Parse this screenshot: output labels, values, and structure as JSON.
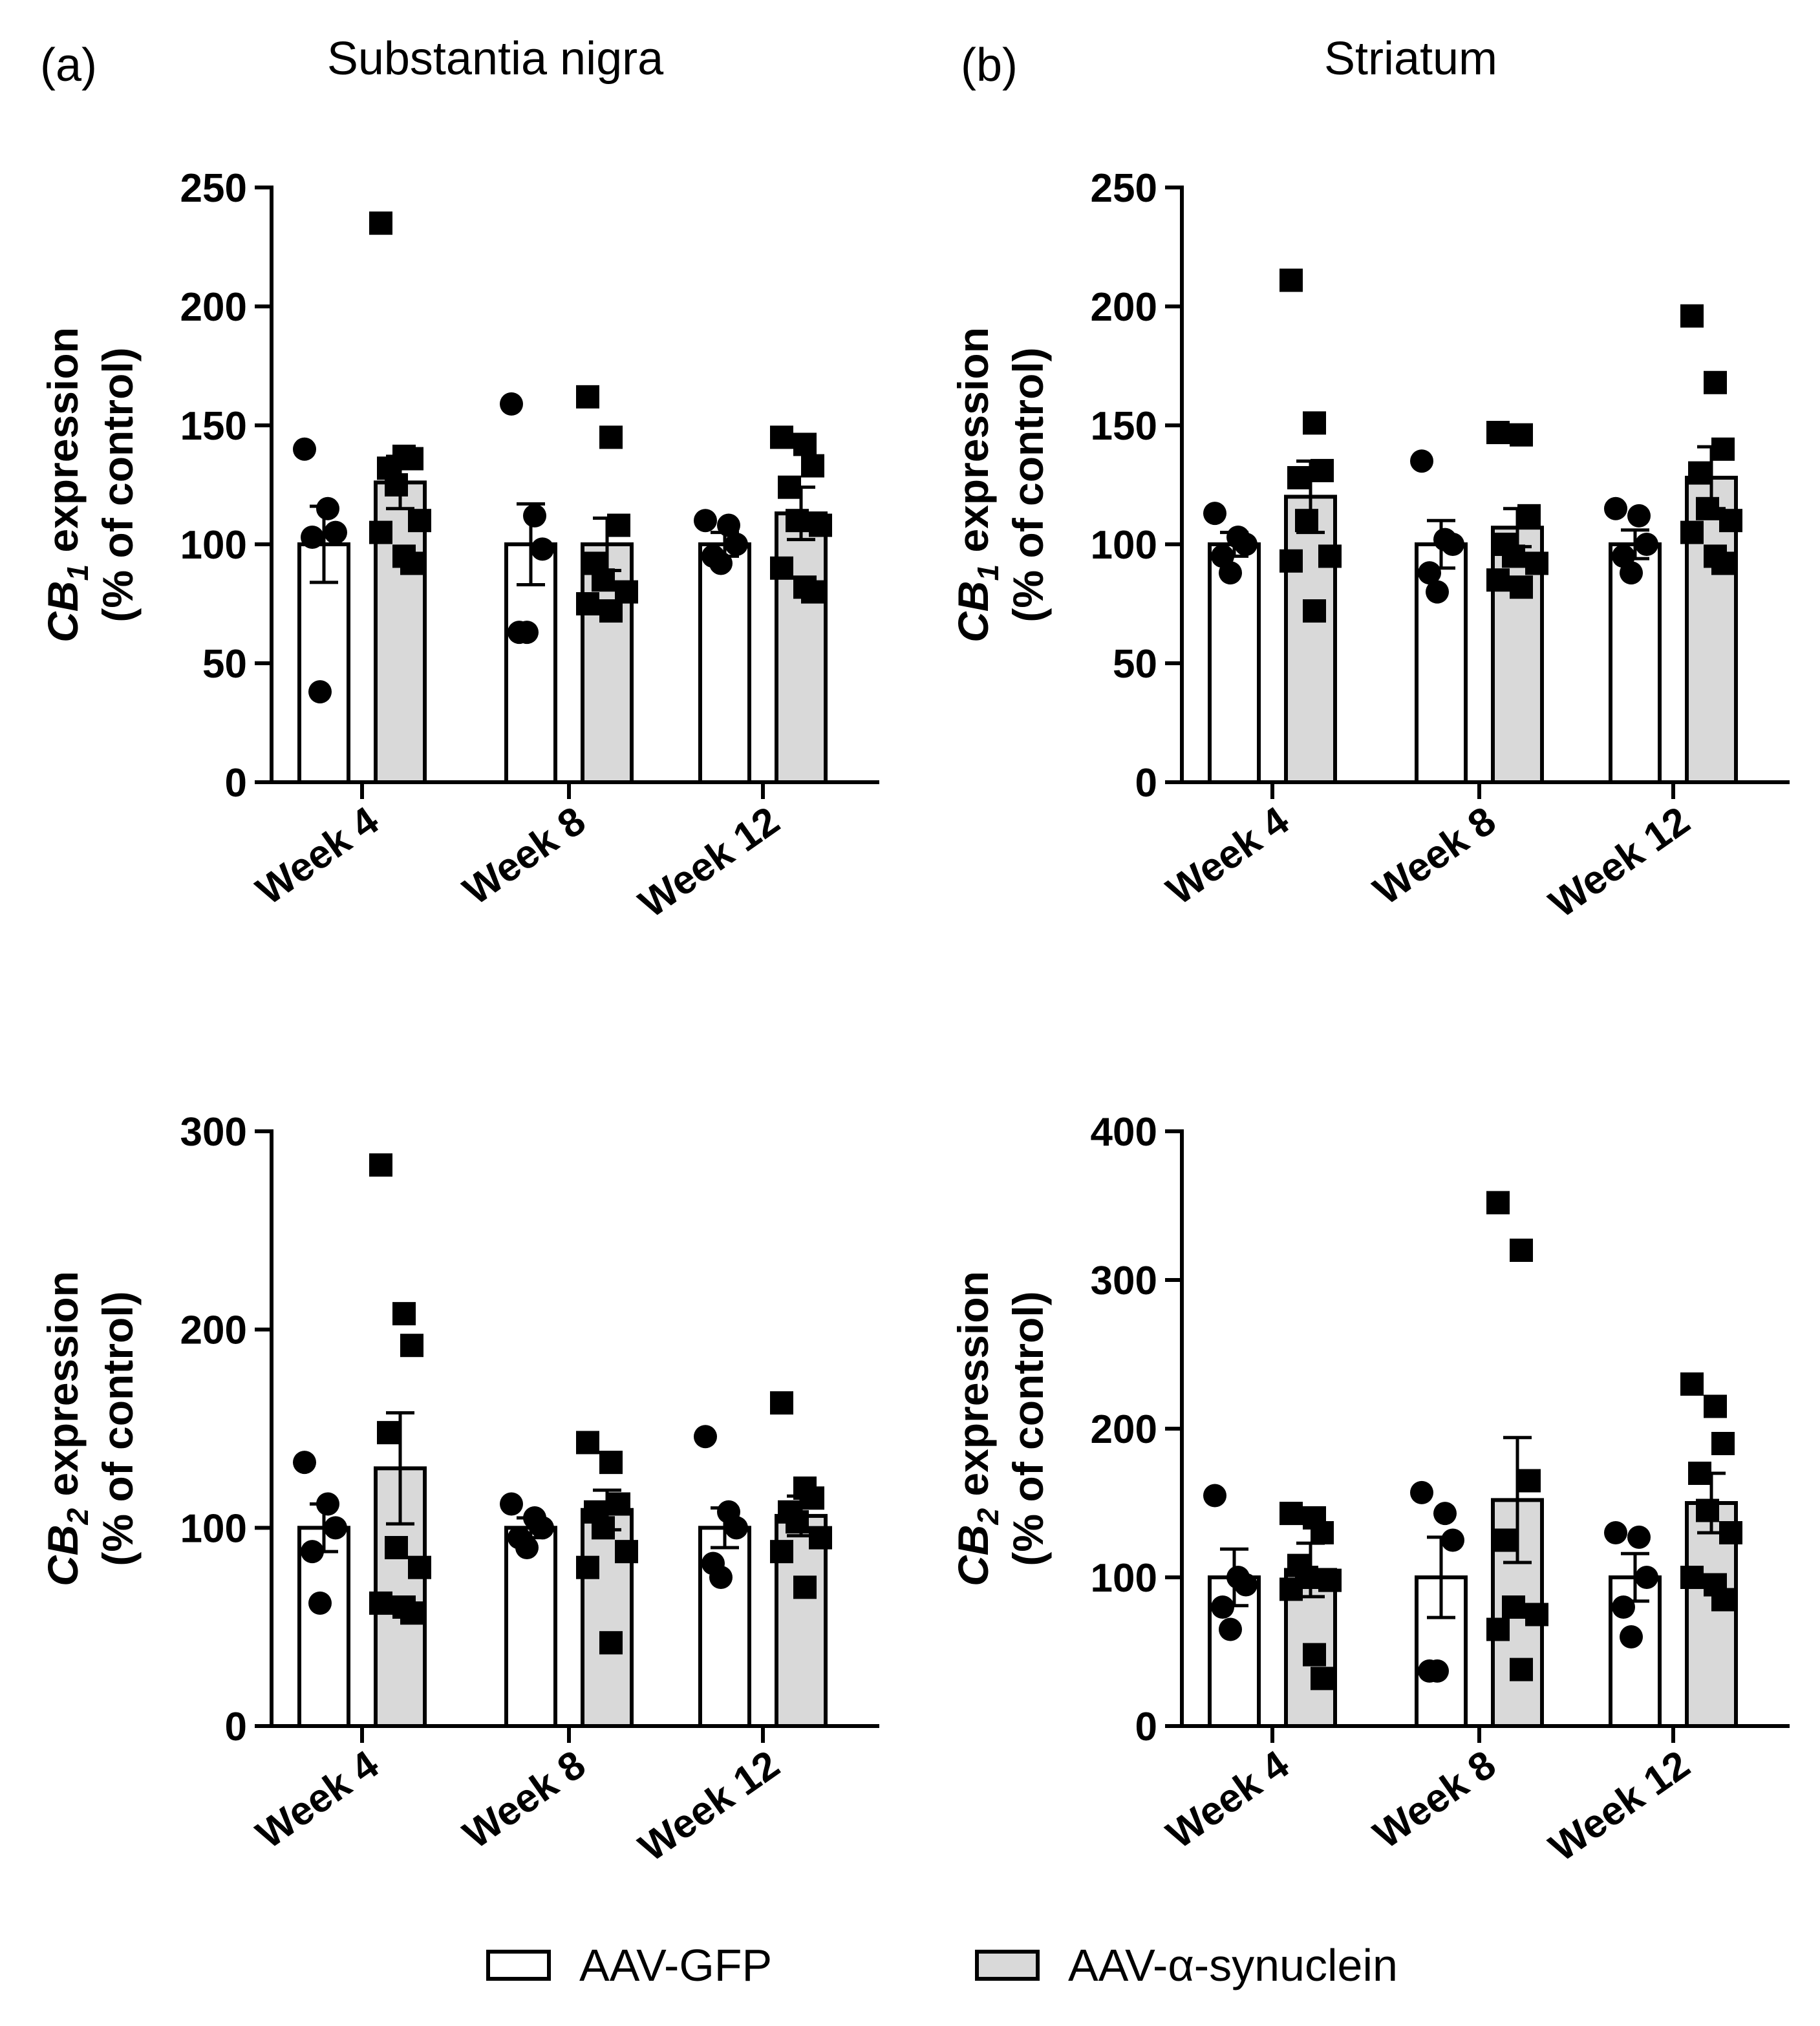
{
  "panels": {
    "a": {
      "letter": "(a)",
      "title": "Substantia nigra"
    },
    "b": {
      "letter": "(b)",
      "title": "Striatum"
    }
  },
  "legend": [
    {
      "label": "AAV-GFP",
      "color": "#ffffff"
    },
    {
      "label": "AAV-α-synuclein",
      "color": "#d9d9d9"
    }
  ],
  "chart_data": [
    {
      "id": "a-cb1",
      "type": "bar",
      "panel": "a",
      "ylabel_main": "CB",
      "ylabel_sub": "1",
      "ylabel_rest": " expression",
      "ylabel2": "(% of control)",
      "ylim": [
        0,
        250
      ],
      "yticks": [
        0,
        50,
        100,
        150,
        200,
        250
      ],
      "categories": [
        "Week 4",
        "Week 8",
        "Week 12"
      ],
      "series": [
        {
          "name": "AAV-GFP",
          "color": "#ffffff",
          "marker": "circle",
          "values": [
            100,
            100,
            100
          ],
          "sem": [
            16,
            17,
            5
          ],
          "points": [
            [
              140,
              115,
              105,
              103,
              38
            ],
            [
              159,
              112,
              98,
              63,
              63
            ],
            [
              110,
              108,
              100,
              95,
              92
            ]
          ]
        },
        {
          "name": "AAV-α-synuclein",
          "color": "#d9d9d9",
          "marker": "square",
          "values": [
            126,
            100,
            113
          ],
          "sem": [
            11,
            11,
            11
          ],
          "points": [
            [
              235,
              137,
              136,
              132,
              125,
              110,
              105,
              95,
              92
            ],
            [
              162,
              145,
              108,
              92,
              85,
              80,
              75,
              72
            ],
            [
              145,
              142,
              133,
              124,
              110,
              108,
              90,
              82,
              80
            ]
          ]
        }
      ]
    },
    {
      "id": "b-cb1",
      "type": "bar",
      "panel": "b",
      "ylabel_main": "CB",
      "ylabel_sub": "1",
      "ylabel_rest": " expression",
      "ylabel2": "(% of control)",
      "ylim": [
        0,
        250
      ],
      "yticks": [
        0,
        50,
        100,
        150,
        200,
        250
      ],
      "categories": [
        "Week 4",
        "Week 8",
        "Week 12"
      ],
      "series": [
        {
          "name": "AAV-GFP",
          "color": "#ffffff",
          "marker": "circle",
          "values": [
            100,
            100,
            100
          ],
          "sem": [
            5,
            10,
            6
          ],
          "points": [
            [
              113,
              103,
              100,
              95,
              88
            ],
            [
              135,
              102,
              100,
              88,
              80
            ],
            [
              115,
              112,
              100,
              95,
              88
            ]
          ]
        },
        {
          "name": "AAV-α-synuclein",
          "color": "#d9d9d9",
          "marker": "square",
          "values": [
            120,
            107,
            128
          ],
          "sem": [
            15,
            8,
            13
          ],
          "points": [
            [
              211,
              151,
              131,
              128,
              110,
              95,
              93,
              72
            ],
            [
              147,
              146,
              112,
              100,
              95,
              92,
              85,
              82
            ],
            [
              196,
              168,
              140,
              130,
              115,
              110,
              105,
              95,
              92
            ]
          ]
        }
      ]
    },
    {
      "id": "a-cb2",
      "type": "bar",
      "panel": "a",
      "ylabel_main": "CB",
      "ylabel_sub": "2",
      "ylabel_rest": " expression",
      "ylabel2": "(% of control)",
      "ylim": [
        0,
        300
      ],
      "yticks": [
        0,
        100,
        200,
        300
      ],
      "categories": [
        "Week 4",
        "Week 8",
        "Week 12"
      ],
      "series": [
        {
          "name": "AAV-GFP",
          "color": "#ffffff",
          "marker": "circle",
          "values": [
            100,
            100,
            100
          ],
          "sem": [
            12,
            5,
            10
          ],
          "points": [
            [
              133,
              112,
              100,
              88,
              62
            ],
            [
              112,
              105,
              100,
              95,
              90
            ],
            [
              146,
              108,
              100,
              82,
              75
            ]
          ]
        },
        {
          "name": "AAV-α-synuclein",
          "color": "#d9d9d9",
          "marker": "square",
          "values": [
            130,
            109,
            106
          ],
          "sem": [
            28,
            10,
            10
          ],
          "points": [
            [
              283,
              208,
              192,
              148,
              90,
              80,
              62,
              60,
              57
            ],
            [
              143,
              133,
              112,
              108,
              100,
              88,
              80,
              42
            ],
            [
              163,
              120,
              115,
              108,
              103,
              95,
              88,
              70
            ]
          ]
        }
      ]
    },
    {
      "id": "b-cb2",
      "type": "bar",
      "panel": "b",
      "ylabel_main": "CB",
      "ylabel_sub": "2",
      "ylabel_rest": " expression",
      "ylabel2": "(% of control)",
      "ylim": [
        0,
        400
      ],
      "yticks": [
        0,
        100,
        200,
        300,
        400
      ],
      "categories": [
        "Week 4",
        "Week 8",
        "Week 12"
      ],
      "series": [
        {
          "name": "AAV-GFP",
          "color": "#ffffff",
          "marker": "circle",
          "values": [
            100,
            100,
            100
          ],
          "sem": [
            19,
            27,
            16
          ],
          "points": [
            [
              155,
              100,
              95,
              80,
              65
            ],
            [
              157,
              143,
              125,
              37,
              37
            ],
            [
              130,
              127,
              100,
              80,
              60
            ]
          ]
        },
        {
          "name": "AAV-α-synuclein",
          "color": "#d9d9d9",
          "marker": "square",
          "values": [
            105,
            152,
            150
          ],
          "sem": [
            18,
            42,
            20
          ],
          "points": [
            [
              143,
              140,
              130,
              108,
              100,
              98,
              92,
              48,
              32
            ],
            [
              352,
              320,
              165,
              125,
              80,
              75,
              65,
              38
            ],
            [
              230,
              215,
              190,
              170,
              145,
              130,
              100,
              95,
              85
            ]
          ]
        }
      ]
    }
  ]
}
